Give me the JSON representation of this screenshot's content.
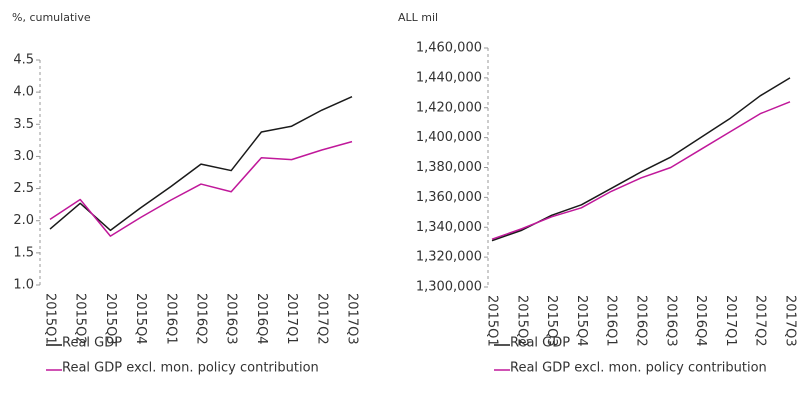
{
  "chart_data": [
    {
      "type": "line",
      "y_label": "%, cumulative",
      "categories": [
        "2015Q1",
        "2015Q2",
        "2015Q3",
        "2015Q4",
        "2016Q1",
        "2016Q2",
        "2016Q3",
        "2016Q4",
        "2017Q1",
        "2017Q2",
        "2017Q3"
      ],
      "series": [
        {
          "name": "Real GDP",
          "color": "#1a1a1a",
          "values": [
            1.87,
            2.27,
            1.85,
            2.2,
            2.53,
            2.88,
            2.78,
            3.38,
            3.47,
            3.72,
            3.93
          ]
        },
        {
          "name": "Real GDP excl. mon. policy contribution",
          "color": "#c0189a",
          "values": [
            2.02,
            2.33,
            1.76,
            2.05,
            2.32,
            2.57,
            2.45,
            2.98,
            2.95,
            3.1,
            3.23
          ]
        }
      ],
      "ylim": [
        1.0,
        4.5
      ],
      "yticks": [
        {
          "value": 1,
          "label": "1.0"
        },
        1.5,
        {
          "value": 2,
          "label": "2.0"
        },
        2.5,
        {
          "value": 3,
          "label": "3.0"
        },
        3.5,
        {
          "value": 4,
          "label": "4.0"
        },
        4.5
      ]
    },
    {
      "type": "line",
      "y_label": "ALL mil",
      "categories": [
        "2015Q1",
        "2015Q2",
        "2015Q3",
        "2015Q4",
        "2016Q1",
        "2016Q2",
        "2016Q3",
        "2016Q4",
        "2017Q1",
        "2017Q2",
        "2017Q3"
      ],
      "series": [
        {
          "name": "Real GDP",
          "color": "#1a1a1a",
          "values": [
            1331000,
            1338000,
            1348000,
            1355000,
            1366000,
            1377000,
            1387000,
            1400000,
            1413000,
            1428000,
            1440000
          ]
        },
        {
          "name": "Real GDP excl. mon. policy contribution",
          "color": "#c0189a",
          "values": [
            1332000,
            1339000,
            1347000,
            1353000,
            1364000,
            1373000,
            1380000,
            1392000,
            1404000,
            1416000,
            1424000
          ]
        }
      ],
      "ylim": [
        1300000,
        1460000
      ],
      "yticks": [
        {
          "value": 1300000,
          "label": "1,300,000"
        },
        {
          "value": 1320000,
          "label": "1,320,000"
        },
        {
          "value": 1340000,
          "label": "1,340,000"
        },
        {
          "value": 1360000,
          "label": "1,360,000"
        },
        {
          "value": 1380000,
          "label": "1,380,000"
        },
        {
          "value": 1400000,
          "label": "1,400,000"
        },
        {
          "value": 1420000,
          "label": "1,420,000"
        },
        {
          "value": 1440000,
          "label": "1,440,000"
        },
        {
          "value": 1460000,
          "label": "1,460,000"
        }
      ]
    }
  ]
}
